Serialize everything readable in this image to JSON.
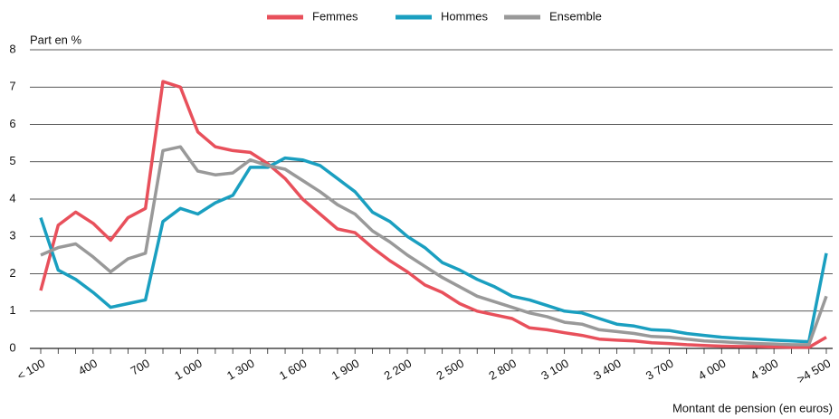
{
  "chart_data": {
    "type": "line",
    "y_label": "Part en %",
    "x_label": "Montant de pension (en euros)",
    "categories": [
      "< 100",
      null,
      null,
      "400",
      null,
      null,
      "700",
      null,
      null,
      "1 000",
      null,
      null,
      "1 300",
      null,
      null,
      "1 600",
      null,
      null,
      "1 900",
      null,
      null,
      "2 200",
      null,
      null,
      "2 500",
      null,
      null,
      "2 800",
      null,
      null,
      "3 100",
      null,
      null,
      "3 400",
      null,
      null,
      "3 700",
      null,
      null,
      "4 000",
      null,
      null,
      "4 300",
      null,
      null,
      ">4 500"
    ],
    "series": [
      {
        "name": "Femmes",
        "color": "#e8505b",
        "values": [
          1.55,
          3.3,
          3.65,
          3.35,
          2.9,
          3.5,
          3.75,
          7.15,
          7.0,
          5.8,
          5.4,
          5.3,
          5.25,
          4.95,
          4.55,
          4.0,
          3.6,
          3.2,
          3.1,
          2.7,
          2.35,
          2.05,
          1.7,
          1.5,
          1.2,
          1.0,
          0.9,
          0.8,
          0.55,
          0.5,
          0.42,
          0.35,
          0.25,
          0.22,
          0.2,
          0.15,
          0.13,
          0.1,
          0.08,
          0.06,
          0.05,
          0.05,
          0.04,
          0.03,
          0.03,
          0.3
        ]
      },
      {
        "name": "Hommes",
        "color": "#1a9fc0",
        "values": [
          3.5,
          2.1,
          1.85,
          1.5,
          1.1,
          1.2,
          1.3,
          3.4,
          3.75,
          3.6,
          3.9,
          4.1,
          4.85,
          4.85,
          5.1,
          5.05,
          4.9,
          4.55,
          4.2,
          3.65,
          3.4,
          3.0,
          2.7,
          2.3,
          2.1,
          1.85,
          1.65,
          1.4,
          1.3,
          1.15,
          1.0,
          0.95,
          0.8,
          0.65,
          0.6,
          0.5,
          0.48,
          0.4,
          0.35,
          0.3,
          0.27,
          0.25,
          0.22,
          0.2,
          0.18,
          2.55
        ]
      },
      {
        "name": "Ensemble",
        "color": "#999999",
        "values": [
          2.5,
          2.7,
          2.8,
          2.45,
          2.05,
          2.4,
          2.55,
          5.3,
          5.4,
          4.75,
          4.65,
          4.7,
          5.05,
          4.9,
          4.8,
          4.5,
          4.2,
          3.85,
          3.6,
          3.15,
          2.85,
          2.5,
          2.2,
          1.9,
          1.65,
          1.4,
          1.25,
          1.1,
          0.95,
          0.85,
          0.7,
          0.65,
          0.5,
          0.45,
          0.4,
          0.32,
          0.3,
          0.25,
          0.2,
          0.18,
          0.15,
          0.13,
          0.12,
          0.1,
          0.1,
          1.4
        ]
      }
    ],
    "ylim": [
      0,
      8
    ],
    "yticks": [
      0,
      1,
      2,
      3,
      4,
      5,
      6,
      7,
      8
    ],
    "grid": true,
    "legend": "top"
  }
}
